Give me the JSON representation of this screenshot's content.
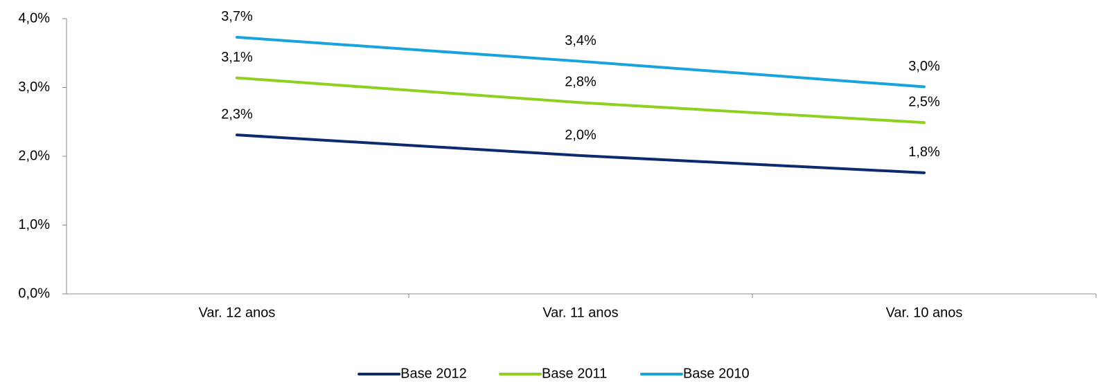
{
  "chart_data": {
    "type": "line",
    "categories": [
      "Var. 12 anos",
      "Var. 11 anos",
      "Var. 10 anos"
    ],
    "series": [
      {
        "name": "Base 2012",
        "color": "#0d2a6e",
        "values": [
          2.31,
          2.01,
          1.76
        ],
        "value_labels": [
          "2,3%",
          "2,0%",
          "1,8%"
        ]
      },
      {
        "name": "Base 2011",
        "color": "#8dd11e",
        "values": [
          3.14,
          2.78,
          2.49
        ],
        "value_labels": [
          "3,1%",
          "2,8%",
          "2,5%"
        ]
      },
      {
        "name": "Base 2010",
        "color": "#18a3dc",
        "values": [
          3.73,
          3.38,
          3.01
        ],
        "value_labels": [
          "3,7%",
          "3,4%",
          "3,0%"
        ]
      }
    ],
    "ylim": [
      0,
      4
    ],
    "yticks": [
      {
        "value": 0,
        "label": "0,0%"
      },
      {
        "value": 1,
        "label": "1,0%"
      },
      {
        "value": 2,
        "label": "2,0%"
      },
      {
        "value": 3,
        "label": "3,0%"
      },
      {
        "value": 4,
        "label": "4,0%"
      }
    ],
    "legend": "bottom"
  }
}
